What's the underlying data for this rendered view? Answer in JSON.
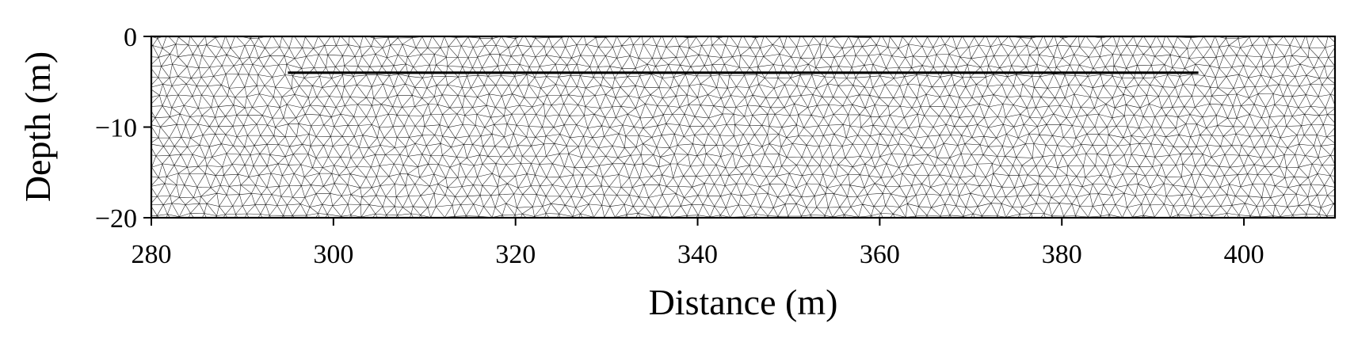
{
  "chart_data": {
    "type": "mesh",
    "title": "",
    "xlabel": "Distance (m)",
    "ylabel": "Depth (m)",
    "xlim": [
      280,
      410
    ],
    "ylim": [
      -20,
      0
    ],
    "xticks": [
      280,
      300,
      320,
      340,
      360,
      380,
      400
    ],
    "yticks": [
      0,
      -10,
      -20
    ],
    "xtick_labels": [
      "280",
      "300",
      "320",
      "340",
      "360",
      "380",
      "400"
    ],
    "ytick_labels": [
      "0",
      "−10",
      "−20"
    ],
    "grid": false,
    "mesh": {
      "kind": "triangular",
      "approx_edge_length_m": 1.2
    },
    "line": {
      "x": [
        295,
        395
      ],
      "y": [
        -4,
        -4
      ]
    },
    "colors": {
      "mesh": "#000000",
      "line": "#000000",
      "background": "#ffffff"
    }
  }
}
